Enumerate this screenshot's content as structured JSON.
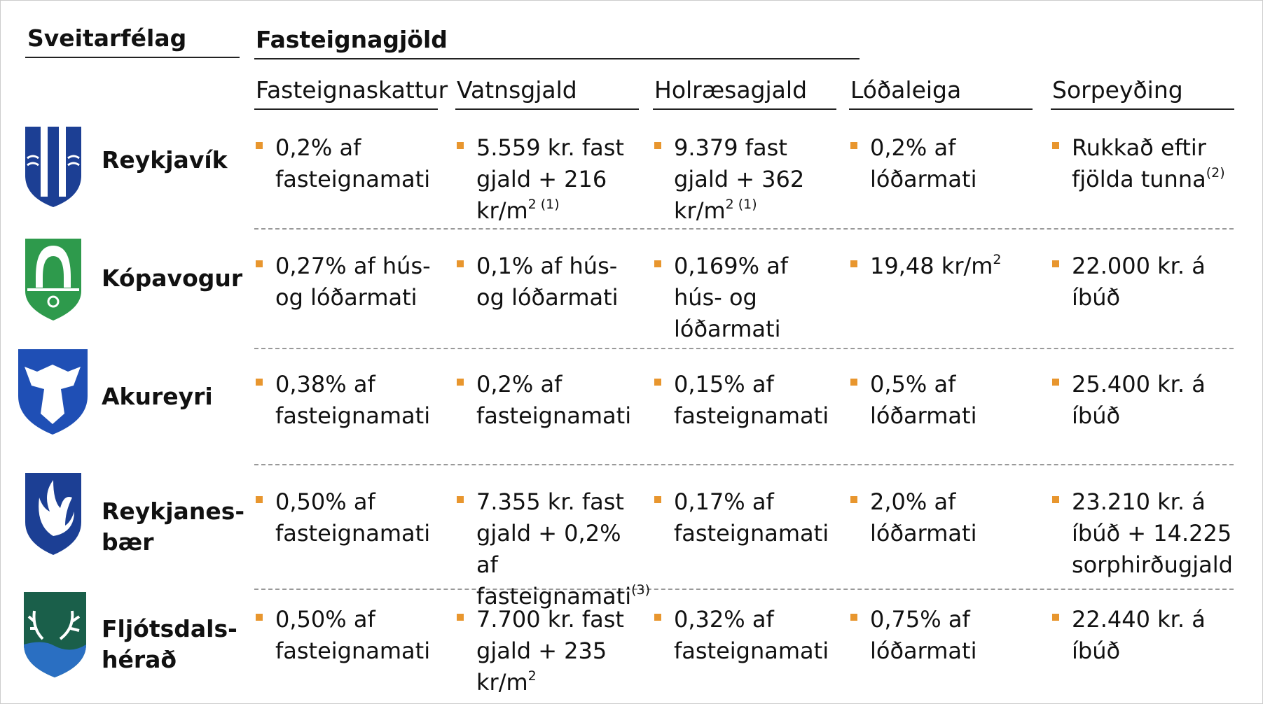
{
  "header": {
    "left": "Sveitarfélag",
    "group": "Fasteignagjöld"
  },
  "columns": [
    "Fasteignaskattur",
    "Vatnsgjald",
    "Holræsagjald",
    "Lóðaleiga",
    "Sorpeyðing"
  ],
  "rows": [
    {
      "name": [
        "Reykjavík"
      ],
      "cells": [
        {
          "text": "0,2% af fasteignamati"
        },
        {
          "text": "5.559 kr. fast gjald + 216 kr/m",
          "sup": "2 (1)"
        },
        {
          "text": "9.379 fast gjald + 362 kr/m",
          "sup": "2 (1)"
        },
        {
          "text": "0,2% af lóðarmati"
        },
        {
          "text": "Rukkað eftir fjölda tunna",
          "sup": "(2)"
        }
      ]
    },
    {
      "name": [
        "Kópavogur"
      ],
      "cells": [
        {
          "text": "0,27% af hús- og lóðarmati"
        },
        {
          "text": "0,1% af hús- og lóðarmati"
        },
        {
          "text": "0,169% af hús- og lóðarmati"
        },
        {
          "text": "19,48 kr/m",
          "sup": "2"
        },
        {
          "text": "22.000 kr. á íbúð"
        }
      ]
    },
    {
      "name": [
        "Akureyri"
      ],
      "cells": [
        {
          "text": "0,38% af fasteignamati"
        },
        {
          "text": "0,2% af fasteignamati"
        },
        {
          "text": "0,15% af fasteignamati"
        },
        {
          "text": "0,5% af lóðarmati"
        },
        {
          "text": "25.400 kr. á íbúð"
        }
      ]
    },
    {
      "name": [
        "Reykjanes-",
        "bær"
      ],
      "cells": [
        {
          "text": "0,50% af fasteignamati"
        },
        {
          "text": "7.355 kr. fast gjald + 0,2% af fasteignamati",
          "sup": "(3)"
        },
        {
          "text": "0,17% af fasteignamati"
        },
        {
          "text": "2,0% af lóðarmati"
        },
        {
          "text": "23.210 kr. á íbúð + 14.225 sorphirðugjald"
        }
      ]
    },
    {
      "name": [
        "Fljótsdals-",
        "hérað"
      ],
      "cells": [
        {
          "text": "0,50% af fasteignamati"
        },
        {
          "text": "7.700 kr. fast gjald + 235 kr/m",
          "sup": "2"
        },
        {
          "text": "0,32% af fasteignamati"
        },
        {
          "text": "0,75% af lóðarmati"
        },
        {
          "text": "22.440 kr. á íbúð"
        }
      ]
    }
  ]
}
